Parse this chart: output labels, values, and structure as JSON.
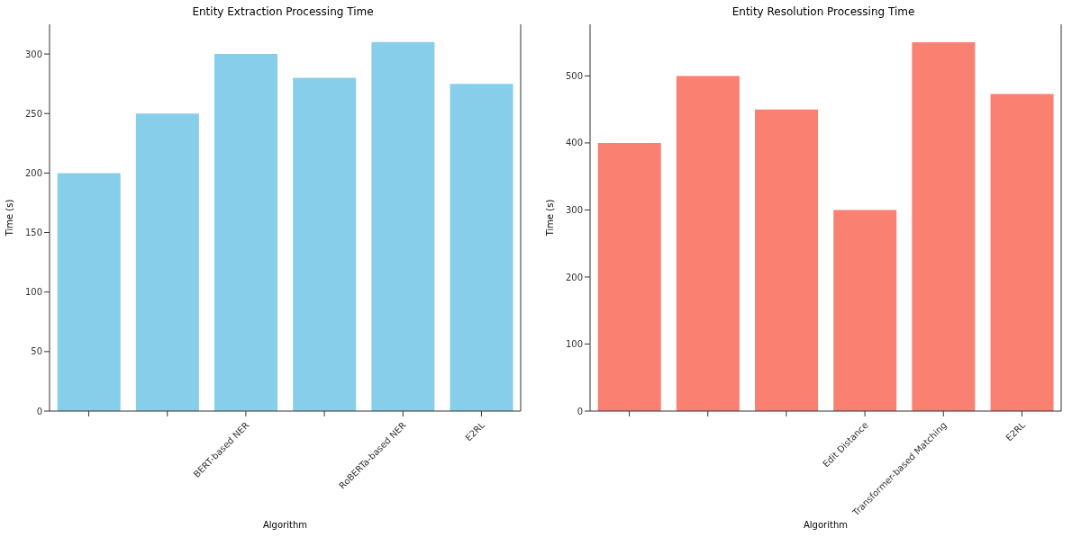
{
  "chart_data": [
    {
      "type": "bar",
      "title": "Entity Extraction Processing Time",
      "xlabel": "Algorithm",
      "ylabel": "Time (s)",
      "categories": [
        null,
        null,
        "BERT-based NER",
        null,
        "RoBERTa-based NER",
        "E2RL"
      ],
      "values": [
        200,
        250,
        300,
        280,
        310,
        275
      ],
      "color": "#87ceeb",
      "ylim": [
        0,
        325
      ],
      "yticks": [
        0,
        50,
        100,
        150,
        200,
        250,
        300
      ],
      "grid": false,
      "legend": false
    },
    {
      "type": "bar",
      "title": "Entity Resolution Processing Time",
      "xlabel": "Algorithm",
      "ylabel": "Time (s)",
      "categories": [
        null,
        null,
        null,
        "Edit Distance",
        "Transformer-based Matching",
        "E2RL"
      ],
      "values": [
        400,
        500,
        450,
        300,
        550,
        473
      ],
      "color": "#fa8072",
      "ylim": [
        0,
        577
      ],
      "yticks": [
        0,
        100,
        200,
        300,
        400,
        500
      ],
      "grid": false,
      "legend": false
    }
  ]
}
